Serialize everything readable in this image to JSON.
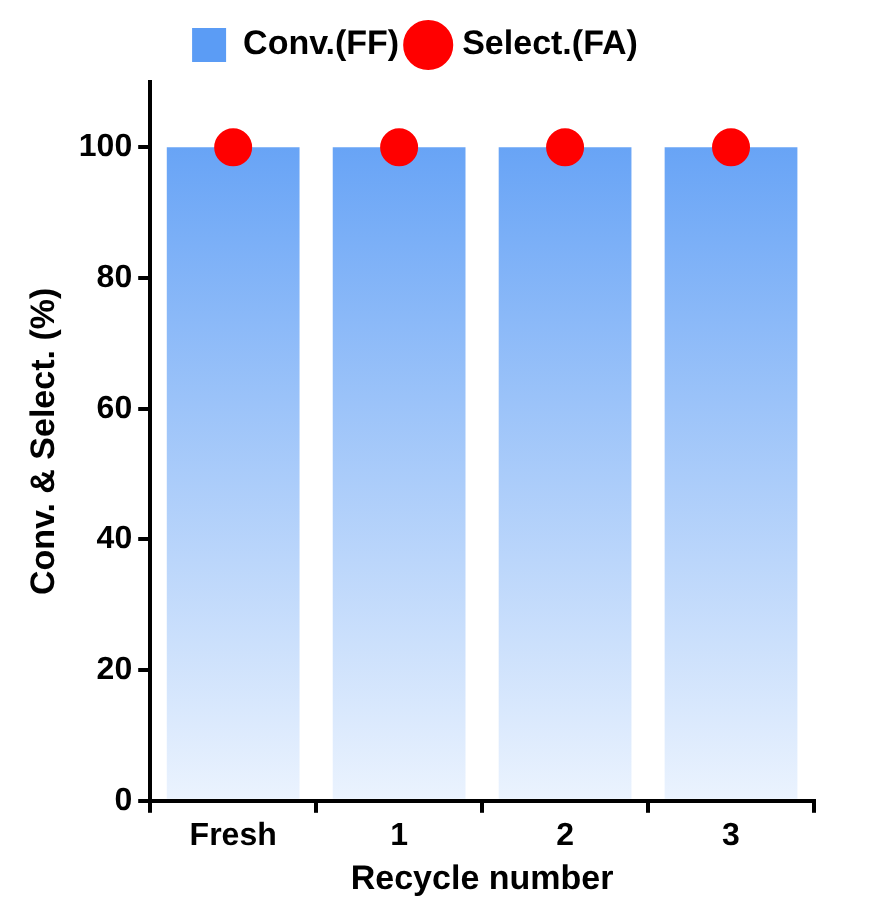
{
  "chart_data": {
    "type": "bar",
    "xlabel": "Recycle number",
    "ylabel": "Conv. & Select. (%)",
    "categories": [
      "Fresh",
      "1",
      "2",
      "3"
    ],
    "series": [
      {
        "name": "Conv.(FF)",
        "color": "#5b9cf5",
        "values": [
          100,
          100,
          100,
          100
        ]
      },
      {
        "name": "Select.(FA)",
        "type": "scatter",
        "color": "#ff0000",
        "marker": "circle",
        "x": [
          "Fresh",
          "1",
          "2",
          "3"
        ],
        "values": [
          100,
          100,
          100,
          100
        ]
      }
    ],
    "ylim": [
      0,
      110
    ],
    "yticks": [
      0,
      20,
      40,
      60,
      80,
      100
    ],
    "legend": "top"
  }
}
